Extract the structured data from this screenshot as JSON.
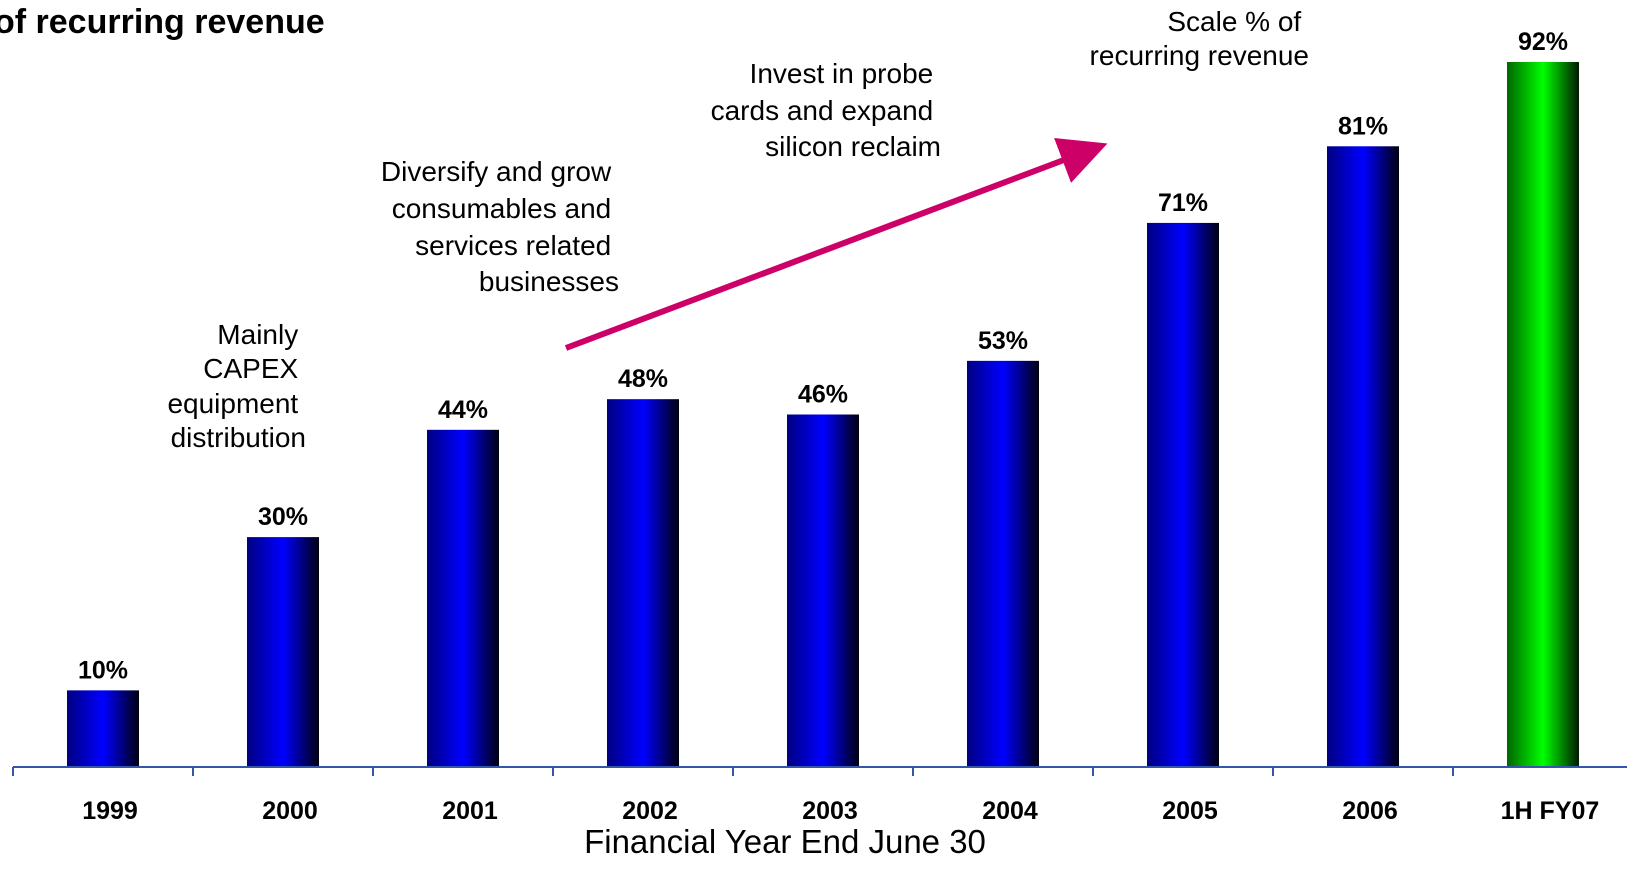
{
  "chart_data": {
    "type": "bar",
    "title": "of recurring revenue",
    "xlabel": "Financial Year End June 30",
    "ylabel": "",
    "categories": [
      "1999",
      "2000",
      "2001",
      "2002",
      "2003",
      "2004",
      "2005",
      "2006",
      "1H FY07"
    ],
    "values": [
      10,
      30,
      44,
      48,
      46,
      53,
      71,
      81,
      92
    ],
    "value_labels": [
      "10%",
      "30%",
      "44%",
      "48%",
      "46%",
      "53%",
      "71%",
      "81%",
      "92%"
    ],
    "ylim": [
      0,
      92
    ],
    "grid": false,
    "colors": {
      "bar": "#0000ff",
      "highlight": "#00ff00",
      "axis": "#3355aa",
      "arrow": "#cc0066"
    },
    "highlight_category": "1H FY07",
    "annotations": [
      {
        "id": "capex",
        "lines": [
          "Mainly",
          "CAPEX",
          "equipment",
          "distribution"
        ]
      },
      {
        "id": "diversify",
        "lines": [
          "Diversify and grow",
          "consumables and",
          "services related",
          "businesses"
        ]
      },
      {
        "id": "invest",
        "lines": [
          "Invest in probe",
          "cards and expand",
          "silicon reclaim"
        ]
      },
      {
        "id": "scale",
        "lines": [
          "Scale %  of",
          "recurring revenue"
        ]
      }
    ]
  }
}
